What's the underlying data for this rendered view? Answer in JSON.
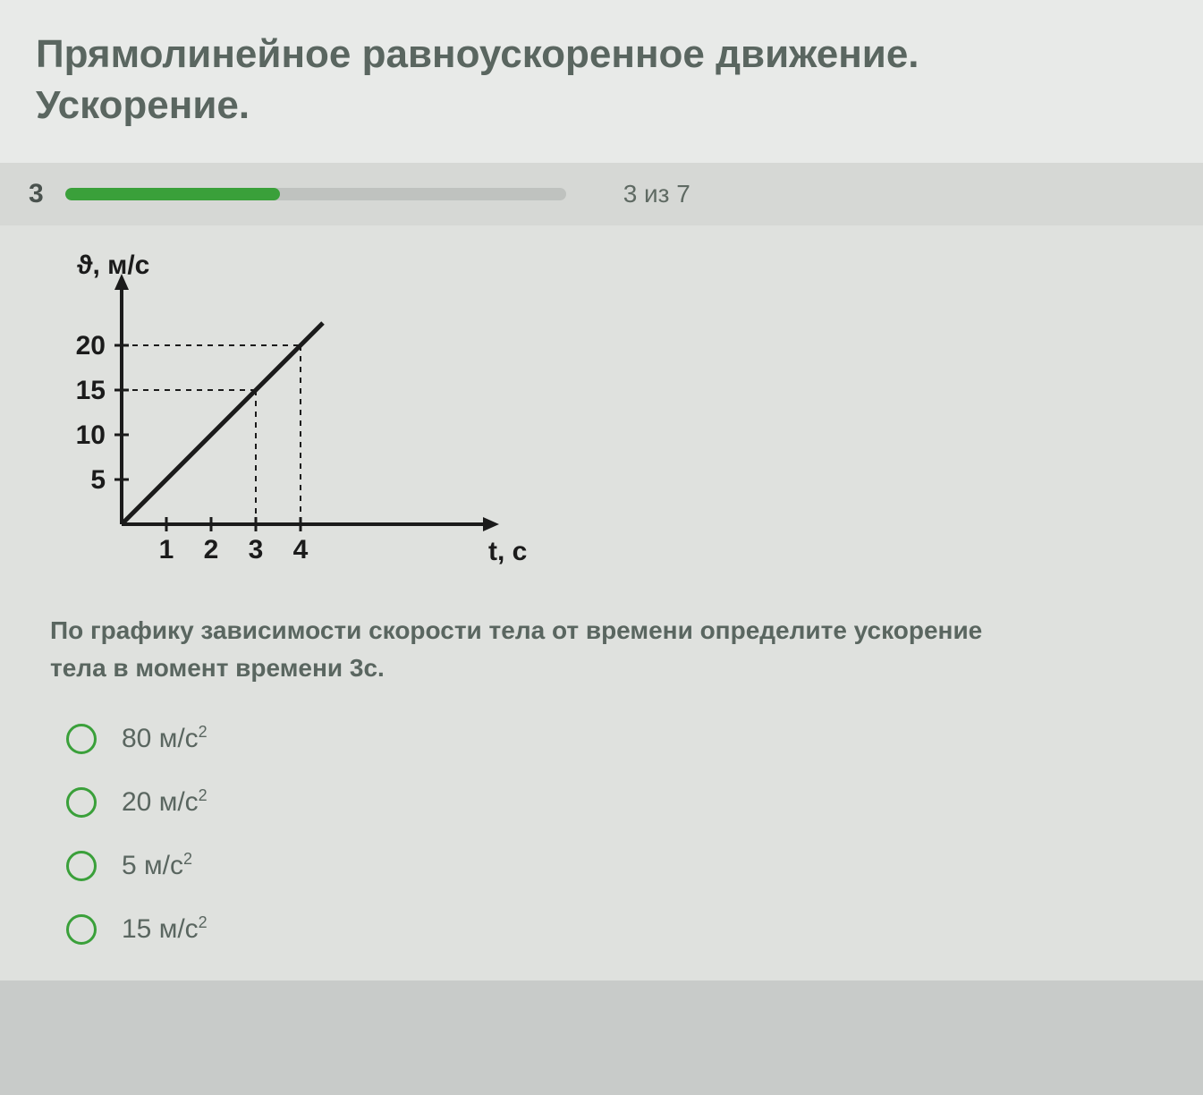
{
  "header": {
    "title_line1": "Прямолинейное равноускоренное движение.",
    "title_line2": "Ускорение."
  },
  "progress": {
    "current_number": "3",
    "text": "3 из 7",
    "percent": 43,
    "fill_color": "#3aa03a",
    "track_color": "#bfc2bf"
  },
  "chart": {
    "type": "line",
    "y_axis_label": "ϑ, м/с",
    "x_axis_label": "t, с",
    "y_ticks": [
      5,
      10,
      15,
      20
    ],
    "x_ticks": [
      1,
      2,
      3,
      4
    ],
    "line_points": [
      [
        0,
        0
      ],
      [
        4.5,
        22.5
      ]
    ],
    "dashed_guides": [
      {
        "from": [
          0,
          15
        ],
        "to": [
          3,
          15
        ]
      },
      {
        "from": [
          3,
          15
        ],
        "to": [
          3,
          0
        ]
      },
      {
        "from": [
          0,
          20
        ],
        "to": [
          4,
          20
        ]
      },
      {
        "from": [
          4,
          20
        ],
        "to": [
          4,
          0
        ]
      }
    ],
    "xlim": [
      0,
      7
    ],
    "ylim": [
      0,
      25
    ],
    "axis_color": "#1b1b1b",
    "label_fontsize": 30,
    "tick_fontsize": 30,
    "axis_stroke_width": 4,
    "line_stroke_width": 5,
    "dash_pattern": "6,6",
    "background_color": "#dfe1de"
  },
  "question": {
    "text_line1": "По графику зависимости скорости тела от времени определите ускорение",
    "text_line2": "тела в момент времени 3с."
  },
  "options": [
    {
      "value": "80",
      "unit": "м/с",
      "power": "2"
    },
    {
      "value": "20",
      "unit": "м/с",
      "power": "2"
    },
    {
      "value": "5",
      "unit": "м/с",
      "power": "2"
    },
    {
      "value": "15",
      "unit": "м/с",
      "power": "2"
    }
  ],
  "colors": {
    "page_bg": "#c8cbc9",
    "header_bg": "#e8eae8",
    "progress_bg": "#d6d8d5",
    "content_bg": "#dfe1de",
    "text": "#5a6660",
    "accent": "#3aa03a"
  }
}
